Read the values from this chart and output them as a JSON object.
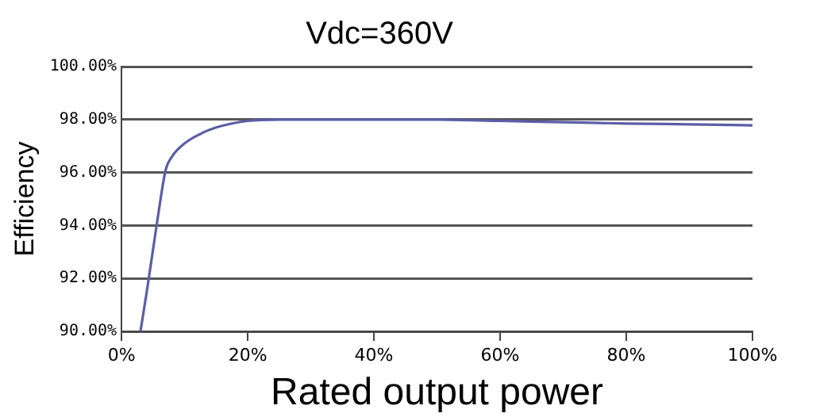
{
  "chart_data": {
    "type": "line",
    "title": "Vdc=360V",
    "xlabel": "Rated output power",
    "ylabel": "Efficiency",
    "x": [
      3,
      4,
      5,
      6,
      7,
      8,
      10,
      12,
      15,
      20,
      25,
      30,
      40,
      50,
      60,
      70,
      80,
      90,
      100
    ],
    "series": [
      {
        "color": "#5b5ea6",
        "values": [
          90,
          91.5,
          93.1,
          94.7,
          96.1,
          96.6,
          97.1,
          97.4,
          97.7,
          97.95,
          98.0,
          98.0,
          98.0,
          98.0,
          97.95,
          97.9,
          97.85,
          97.82,
          97.78
        ]
      }
    ],
    "xlim": [
      0,
      100
    ],
    "xticks": [
      {
        "value": 0,
        "label": "0%"
      },
      {
        "value": 20,
        "label": "20%"
      },
      {
        "value": 40,
        "label": "40%"
      },
      {
        "value": 60,
        "label": "60%"
      },
      {
        "value": 80,
        "label": "80%"
      },
      {
        "value": 100,
        "label": "100%"
      }
    ],
    "ylim": [
      90,
      100
    ],
    "yticks": [
      {
        "value": 90,
        "label": "90.00%"
      },
      {
        "value": 92,
        "label": "92.00%"
      },
      {
        "value": 94,
        "label": "94.00%"
      },
      {
        "value": 96,
        "label": "96.00%"
      },
      {
        "value": 98,
        "label": "98.00%"
      },
      {
        "value": 100,
        "label": "100.00%"
      }
    ],
    "grid": "y",
    "legend": false,
    "marker": "none",
    "line_style": "solid"
  }
}
